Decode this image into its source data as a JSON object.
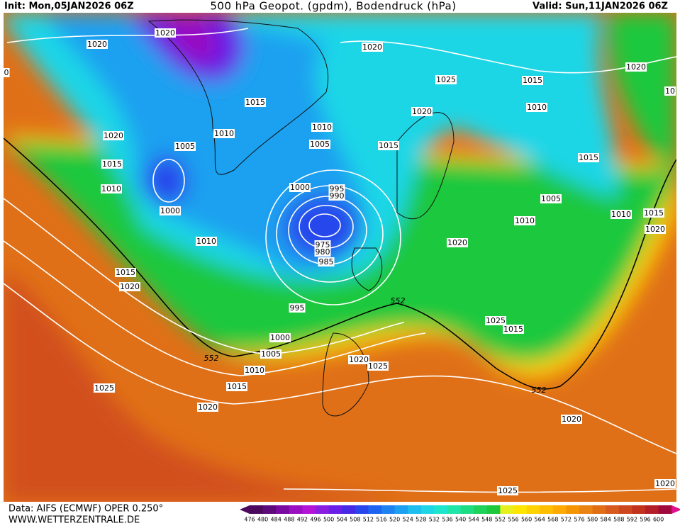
{
  "header": {
    "init": "Init: Mon,05JAN2026 06Z",
    "title": "500 hPa Geopot. (gpdm), Bodendruck (hPa)",
    "valid": "Valid: Sun,11JAN2026 06Z"
  },
  "footer": {
    "source": "Data: AIFS (ECMWF) OPER 0.250°",
    "site": "WWW.WETTERZENTRALE.DE"
  },
  "isobar_labels": [
    1020,
    1020,
    1020,
    1025,
    1015,
    1020,
    10,
    0,
    1015,
    1020,
    1010,
    1020,
    1010,
    1010,
    1005,
    1005,
    1015,
    1015,
    1015,
    1010,
    1000,
    995,
    990,
    1005,
    1000,
    1010,
    1015,
    1010,
    1020,
    1010,
    975,
    980,
    1020,
    985,
    1015,
    1020,
    995,
    1025,
    1015,
    1000,
    1005,
    1020,
    1025,
    1010,
    1025,
    1015,
    1020,
    1020,
    1025,
    1020
  ],
  "contour_labels": [
    552,
    552,
    552
  ],
  "colorbar": {
    "labels": [
      476,
      480,
      484,
      488,
      492,
      496,
      500,
      504,
      508,
      512,
      516,
      520,
      524,
      528,
      532,
      536,
      540,
      544,
      548,
      552,
      556,
      560,
      564,
      568,
      572,
      576,
      580,
      584,
      588,
      592,
      596,
      600
    ],
    "colors": [
      "#4b0a5e",
      "#5d0a7a",
      "#7a0aa0",
      "#9a10c0",
      "#b414d8",
      "#8a1ee0",
      "#6a1ee6",
      "#4628e6",
      "#2846ec",
      "#1e64f0",
      "#1e82f0",
      "#1ea0f0",
      "#1ebeee",
      "#1ed6e6",
      "#1ee6cc",
      "#1ee6a8",
      "#1edc82",
      "#1ed25a",
      "#1ec83c",
      "#e6f01e",
      "#ffe600",
      "#ffd200",
      "#ffbe00",
      "#ffaa00",
      "#f59600",
      "#eb8214",
      "#e16e14",
      "#d75a1e",
      "#cd461e",
      "#c3321e",
      "#b41e28",
      "#a00a3c"
    ]
  }
}
